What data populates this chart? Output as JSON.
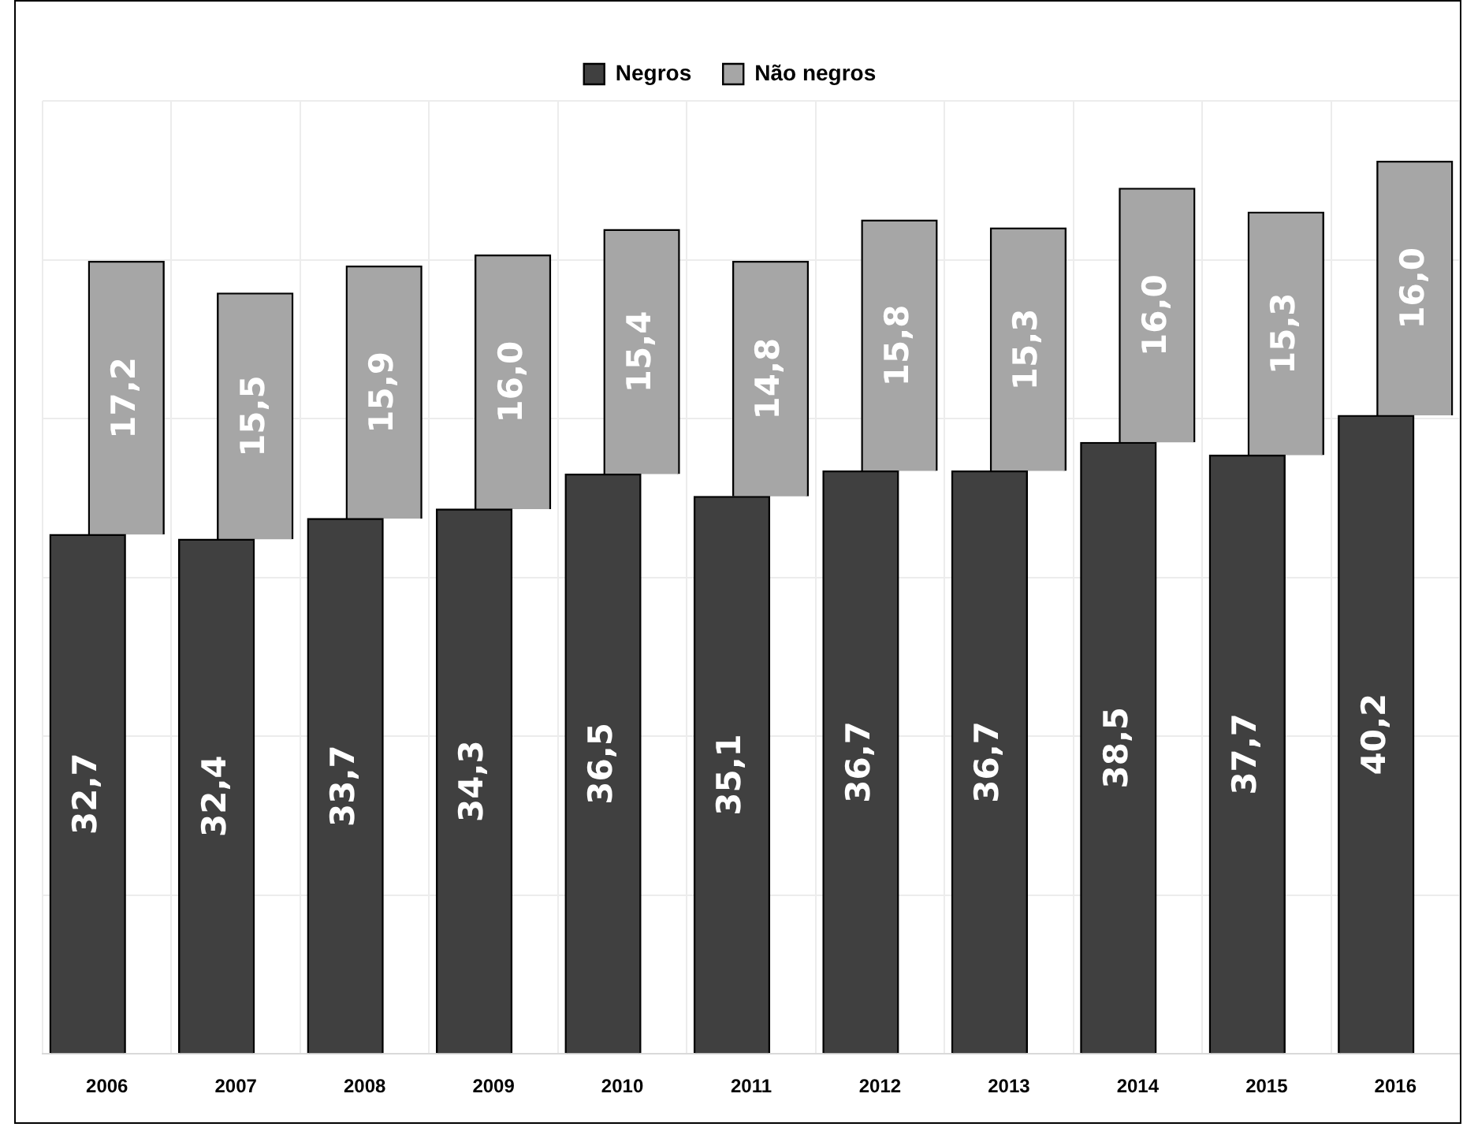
{
  "chart_data": {
    "type": "bar",
    "stacked": true,
    "categories": [
      "2006",
      "2007",
      "2008",
      "2009",
      "2010",
      "2011",
      "2012",
      "2013",
      "2014",
      "2015",
      "2016"
    ],
    "series": [
      {
        "name": "Negros",
        "color": "#404040",
        "values": [
          32.7,
          32.4,
          33.7,
          34.3,
          36.5,
          35.1,
          36.7,
          36.7,
          38.5,
          37.7,
          40.2
        ],
        "value_labels": [
          "32,7",
          "32,4",
          "33,7",
          "34,3",
          "36,5",
          "35,1",
          "36,7",
          "36,7",
          "38,5",
          "37,7",
          "40,2"
        ]
      },
      {
        "name": "Não negros",
        "color": "#a6a6a6",
        "values": [
          17.2,
          15.5,
          15.9,
          16.0,
          15.4,
          14.8,
          15.8,
          15.3,
          16.0,
          15.3,
          16.0
        ],
        "value_labels": [
          "17,2",
          "15,5",
          "15,9",
          "16,0",
          "15,4",
          "14,8",
          "15,8",
          "15,3",
          "16,0",
          "15,3",
          "16,0"
        ]
      }
    ],
    "tick_labels": "x",
    "grid": true,
    "legend": "top"
  }
}
